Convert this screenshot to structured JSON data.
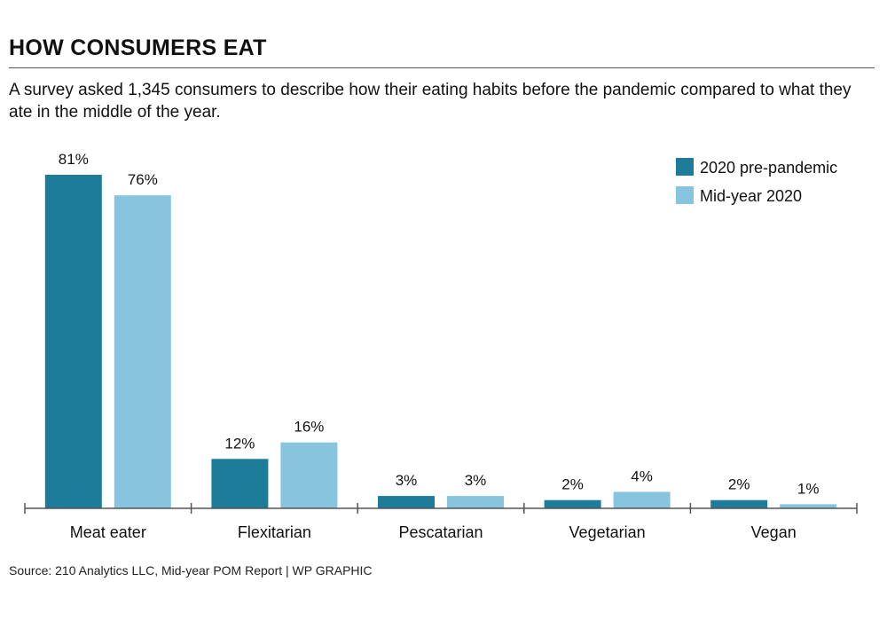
{
  "header": {
    "title": "HOW CONSUMERS EAT",
    "subtitle": "A survey asked 1,345 consumers to describe how their eating habits before the pandemic compared to what they ate in the middle of the year."
  },
  "footer": {
    "source": "Source: 210 Analytics LLC, Mid-year POM Report  |  WP GRAPHIC"
  },
  "colors": {
    "pre": "#1d7c99",
    "mid": "#86c5dd",
    "axis": "#555555"
  },
  "chart_data": {
    "type": "bar",
    "title": "HOW CONSUMERS EAT",
    "xlabel": "",
    "ylabel": "",
    "ylim": [
      0,
      81
    ],
    "grid": false,
    "legend_position": "top-right",
    "categories": [
      "Meat eater",
      "Flexitarian",
      "Pescatarian",
      "Vegetarian",
      "Vegan"
    ],
    "series": [
      {
        "name": "2020 pre-pandemic",
        "values": [
          81,
          12,
          3,
          2,
          2
        ],
        "labels": [
          "81%",
          "12%",
          "3%",
          "2%",
          "2%"
        ]
      },
      {
        "name": "Mid-year 2020",
        "values": [
          76,
          16,
          3,
          4,
          1
        ],
        "labels": [
          "76%",
          "16%",
          "3%",
          "4%",
          "1%"
        ]
      }
    ]
  }
}
